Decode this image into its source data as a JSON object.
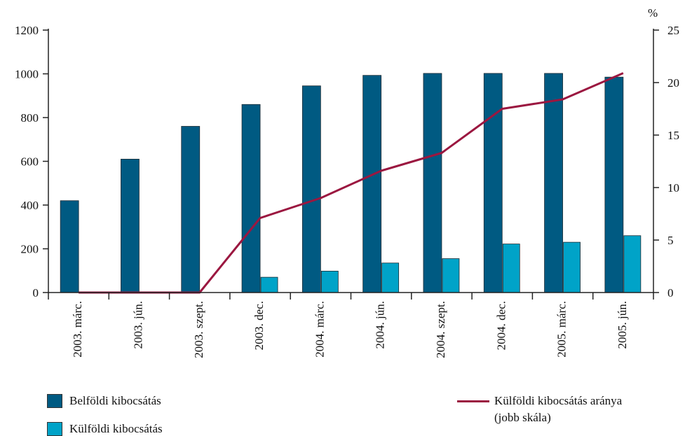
{
  "chart_data": {
    "type": "bar",
    "categories": [
      "2003. márc.",
      "2003. jún.",
      "2003. szept.",
      "2003. dec.",
      "2004. márc.",
      "2004. jún.",
      "2004. szept.",
      "2004. dec.",
      "2005. márc.",
      "2005. jún."
    ],
    "series": [
      {
        "name": "Belföldi kibocsátás",
        "type": "bar",
        "axis": "left",
        "color": "#005a82",
        "values": [
          420,
          610,
          760,
          860,
          945,
          993,
          1002,
          1002,
          1002,
          985
        ]
      },
      {
        "name": "Külföldi kibocsátás",
        "type": "bar",
        "axis": "left",
        "color": "#00a3c8",
        "values": [
          0,
          0,
          0,
          70,
          98,
          135,
          155,
          222,
          230,
          260
        ]
      },
      {
        "name": "Külföldi kibocsátás aránya (jobb skála)",
        "type": "line",
        "axis": "right",
        "color": "#9b1740",
        "values": [
          0,
          0,
          0,
          7.1,
          9.0,
          11.6,
          13.3,
          17.5,
          18.4,
          20.9
        ]
      }
    ],
    "left_axis": {
      "ylim": [
        0,
        1200
      ],
      "ticks": [
        "0",
        "200",
        "400",
        "600",
        "800",
        "1000",
        "1200"
      ]
    },
    "right_axis": {
      "ylim": [
        0,
        25
      ],
      "ticks": [
        "0",
        "5",
        "10",
        "15",
        "20",
        "25"
      ],
      "unit": "%"
    },
    "legend": {
      "placement": "bottom",
      "items": [
        {
          "label": "Belföldi kibocsátás",
          "color": "#005a82"
        },
        {
          "label": "Külföldi kibocsátás",
          "color": "#00a3c8"
        },
        {
          "label_line1": "Külföldi kibocsátás aránya",
          "label_line2": "(jobb skála)",
          "color": "#9b1740"
        }
      ]
    },
    "grid": false
  }
}
